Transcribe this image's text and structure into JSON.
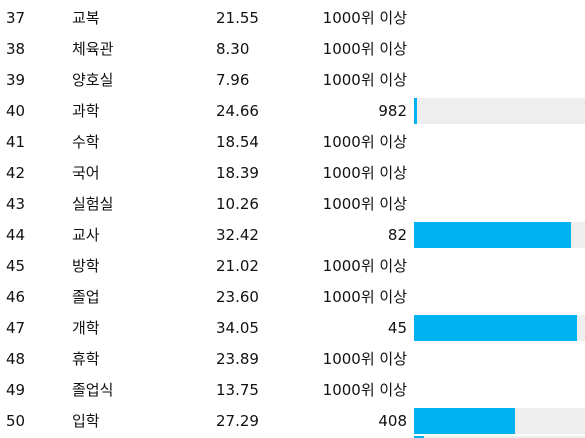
{
  "rows": [
    {
      "rank": "37",
      "word": "교복",
      "score": "21.55",
      "result": "1000위 이상",
      "bar_fraction": null
    },
    {
      "rank": "38",
      "word": "체육관",
      "score": "8.30",
      "result": "1000위 이상",
      "bar_fraction": null
    },
    {
      "rank": "39",
      "word": "양호실",
      "score": "7.96",
      "result": "1000위 이상",
      "bar_fraction": null
    },
    {
      "rank": "40",
      "word": "과학",
      "score": "24.66",
      "result": "982",
      "bar_fraction": 0.018
    },
    {
      "rank": "41",
      "word": "수학",
      "score": "18.54",
      "result": "1000위 이상",
      "bar_fraction": null
    },
    {
      "rank": "42",
      "word": "국어",
      "score": "18.39",
      "result": "1000위 이상",
      "bar_fraction": null
    },
    {
      "rank": "43",
      "word": "실험실",
      "score": "10.26",
      "result": "1000위 이상",
      "bar_fraction": null
    },
    {
      "rank": "44",
      "word": "교사",
      "score": "32.42",
      "result": "82",
      "bar_fraction": 0.918
    },
    {
      "rank": "45",
      "word": "방학",
      "score": "21.02",
      "result": "1000위 이상",
      "bar_fraction": null
    },
    {
      "rank": "46",
      "word": "졸업",
      "score": "23.60",
      "result": "1000위 이상",
      "bar_fraction": null
    },
    {
      "rank": "47",
      "word": "개학",
      "score": "34.05",
      "result": "45",
      "bar_fraction": 0.955
    },
    {
      "rank": "48",
      "word": "휴학",
      "score": "23.89",
      "result": "1000위 이상",
      "bar_fraction": null
    },
    {
      "rank": "49",
      "word": "졸업식",
      "score": "13.75",
      "result": "1000위 이상",
      "bar_fraction": null
    },
    {
      "rank": "50",
      "word": "입학",
      "score": "27.29",
      "result": "408",
      "bar_fraction": 0.592
    }
  ],
  "colors": {
    "bar_fill": "#00b2ef",
    "bar_track": "#eeeeee",
    "text": "#111111"
  }
}
